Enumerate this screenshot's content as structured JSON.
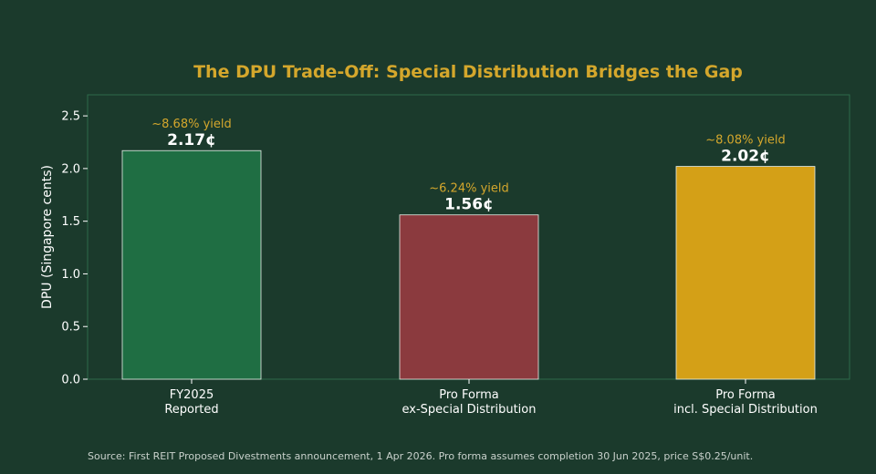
{
  "chart_data": {
    "type": "bar",
    "title": "The DPU Trade-Off: Special Distribution Bridges the Gap",
    "ylabel": "DPU (Singapore cents)",
    "xlabel": "",
    "ylim": [
      0,
      2.7
    ],
    "yticks": [
      "0.0",
      "0.5",
      "1.0",
      "1.5",
      "2.0",
      "2.5"
    ],
    "ytick_values": [
      0,
      0.5,
      1.0,
      1.5,
      2.0,
      2.5
    ],
    "grid": false,
    "categories": [
      [
        "FY2025",
        "Reported"
      ],
      [
        "Pro Forma",
        "ex-Special Distribution"
      ],
      [
        "Pro Forma",
        "incl. Special Distribution"
      ]
    ],
    "values": [
      2.17,
      1.56,
      2.02
    ],
    "value_labels": [
      "2.17¢",
      "1.56¢",
      "2.02¢"
    ],
    "annotations": [
      "~8.68% yield",
      "~6.24% yield",
      "~8.08% yield"
    ],
    "bar_colors": [
      "#1f6e43",
      "#8b3a3e",
      "#d4a017"
    ]
  },
  "colors": {
    "background": "#1b3a2c",
    "title": "#d4a72c",
    "text": "#ffffff",
    "annotation": "#d4a72c",
    "axis": "#2e6b4a",
    "bar_edge": "#e8efe9"
  },
  "source_note": "Source: First REIT Proposed Divestments announcement, 1 Apr 2026. Pro forma assumes completion 30 Jun 2025, price S$0.25/unit."
}
